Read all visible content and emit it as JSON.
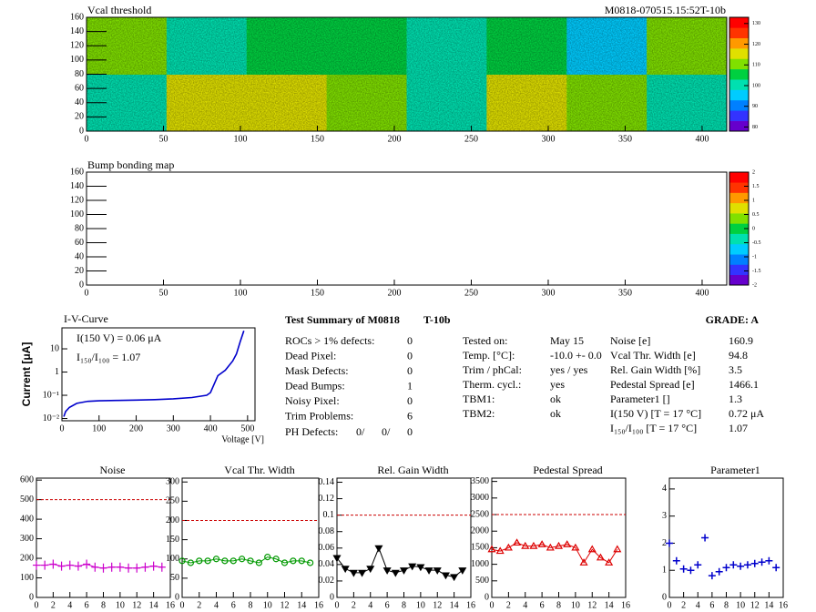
{
  "chart_data": [
    {
      "type": "heatmap",
      "title": "Vcal threshold",
      "subtitle": "M0818-070515.15:52T-10b",
      "xlim": [
        0,
        416
      ],
      "ylim": [
        0,
        160
      ],
      "xticks": [
        0,
        50,
        100,
        150,
        200,
        250,
        300,
        350,
        400
      ],
      "yticks": [
        0,
        20,
        40,
        60,
        80,
        100,
        120,
        140,
        160
      ],
      "values": [
        [
          100,
          115,
          114,
          110,
          100,
          114,
          110,
          100
        ],
        [
          110,
          100,
          103,
          106,
          100,
          105,
          95,
          108
        ]
      ],
      "zlim": [
        78,
        133
      ],
      "zticks": [
        80,
        90,
        100,
        110,
        120,
        130
      ],
      "colorscale": [
        "#6600cc",
        "#3333ff",
        "#0080ff",
        "#00ccff",
        "#00e0b0",
        "#00d040",
        "#80e000",
        "#e0e000",
        "#ff9900",
        "#ff3300",
        "#ff0000"
      ]
    },
    {
      "type": "heatmap",
      "title": "Bump bonding map",
      "xlim": [
        0,
        416
      ],
      "ylim": [
        0,
        160
      ],
      "xticks": [
        0,
        50,
        100,
        150,
        200,
        250,
        300,
        350,
        400
      ],
      "yticks": [
        0,
        20,
        40,
        60,
        80,
        100,
        120,
        140,
        160
      ],
      "values": [],
      "zlim": [
        -2,
        2
      ],
      "zticks": [
        -2,
        -1.5,
        -1,
        -0.5,
        0,
        0.5,
        1,
        1.5,
        2
      ],
      "colorscale": [
        "#6600cc",
        "#3333ff",
        "#0080ff",
        "#00ccff",
        "#00e0b0",
        "#00d040",
        "#80e000",
        "#e0e000",
        "#ff9900",
        "#ff3300",
        "#ff0000"
      ]
    },
    {
      "type": "line",
      "title": "I-V-Curve",
      "x_label": "Voltage [V]",
      "y_label": "Current [μA]",
      "log_y": true,
      "annotations": [
        "I(150 V) = 0.06 μA",
        "I₁₅₀/I₁₀₀ =  1.07"
      ],
      "xlim": [
        0,
        520
      ],
      "ylim": [
        0.008,
        80
      ],
      "xticks": [
        0,
        100,
        200,
        300,
        400,
        500
      ],
      "yticks": [
        {
          "value": 0.01,
          "label": "10⁻²"
        },
        {
          "value": 0.1,
          "label": "10⁻¹"
        },
        1,
        10
      ],
      "x": [
        5,
        10,
        20,
        40,
        70,
        100,
        150,
        200,
        250,
        300,
        350,
        390,
        400,
        410,
        420,
        440,
        460,
        470,
        480,
        490
      ],
      "values": [
        0.012,
        0.02,
        0.03,
        0.045,
        0.055,
        0.058,
        0.06,
        0.062,
        0.065,
        0.07,
        0.08,
        0.1,
        0.13,
        0.3,
        0.7,
        1.2,
        3,
        6,
        20,
        60
      ],
      "color": "#0000cc"
    },
    {
      "type": "line",
      "title": "Noise",
      "xlim": [
        0,
        16
      ],
      "ylim": [
        0,
        610
      ],
      "xticks": [
        0,
        2,
        4,
        6,
        8,
        10,
        12,
        14,
        16
      ],
      "yticks": [
        0,
        100,
        200,
        300,
        400,
        500,
        600
      ],
      "x": [
        0,
        1,
        2,
        3,
        4,
        5,
        6,
        7,
        8,
        9,
        10,
        11,
        12,
        13,
        14,
        15
      ],
      "values": [
        165,
        165,
        170,
        160,
        165,
        160,
        170,
        155,
        150,
        155,
        155,
        150,
        150,
        155,
        160,
        155
      ],
      "color": "#cc00cc",
      "marker": "plus",
      "connect": true,
      "limit": 500,
      "limit_color": "#cc0000"
    },
    {
      "type": "line",
      "title": "Vcal Thr. Width",
      "xlim": [
        0,
        16
      ],
      "ylim": [
        0,
        310
      ],
      "xticks": [
        0,
        2,
        4,
        6,
        8,
        10,
        12,
        14,
        16
      ],
      "yticks": [
        0,
        50,
        100,
        150,
        200,
        250,
        300
      ],
      "x": [
        0,
        1,
        2,
        3,
        4,
        5,
        6,
        7,
        8,
        9,
        10,
        11,
        12,
        13,
        14,
        15
      ],
      "values": [
        95,
        90,
        95,
        95,
        100,
        95,
        95,
        100,
        95,
        90,
        105,
        100,
        90,
        95,
        95,
        90
      ],
      "color": "#009900",
      "marker": "circle",
      "connect": true,
      "limit": 200,
      "limit_color": "#cc0000"
    },
    {
      "type": "line",
      "title": "Rel. Gain Width",
      "xlim": [
        0,
        16
      ],
      "ylim": [
        0,
        0.145
      ],
      "xticks": [
        0,
        2,
        4,
        6,
        8,
        10,
        12,
        14,
        16
      ],
      "yticks": [
        0,
        0.02,
        0.04,
        0.06,
        0.08,
        0.1,
        0.12,
        0.14
      ],
      "x": [
        0,
        1,
        2,
        3,
        4,
        5,
        6,
        7,
        8,
        9,
        10,
        11,
        12,
        13,
        14,
        15
      ],
      "values": [
        0.048,
        0.035,
        0.03,
        0.03,
        0.035,
        0.06,
        0.033,
        0.03,
        0.033,
        0.038,
        0.037,
        0.033,
        0.033,
        0.027,
        0.025,
        0.033
      ],
      "color": "#000000",
      "marker": "triangle-down",
      "connect": true,
      "limit": 0.1,
      "limit_color": "#cc0000"
    },
    {
      "type": "line",
      "title": "Pedestal Spread",
      "xlim": [
        0,
        16
      ],
      "ylim": [
        0,
        3600
      ],
      "xticks": [
        0,
        2,
        4,
        6,
        8,
        10,
        12,
        14,
        16
      ],
      "yticks": [
        0,
        500,
        1000,
        1500,
        2000,
        2500,
        3000,
        3500
      ],
      "x": [
        0,
        1,
        2,
        3,
        4,
        5,
        6,
        7,
        8,
        9,
        10,
        11,
        12,
        13,
        14,
        15
      ],
      "values": [
        1450,
        1400,
        1500,
        1650,
        1550,
        1550,
        1600,
        1500,
        1550,
        1600,
        1500,
        1050,
        1450,
        1200,
        1050,
        1450
      ],
      "color": "#dd0000",
      "marker": "triangle",
      "connect": true,
      "limit": 2500,
      "limit_color": "#cc0000"
    },
    {
      "type": "line",
      "title": "Parameter1",
      "xlim": [
        0,
        16
      ],
      "ylim": [
        0,
        4.4
      ],
      "xticks": [
        0,
        2,
        4,
        6,
        8,
        10,
        12,
        14,
        16
      ],
      "yticks": [
        0,
        1,
        2,
        3,
        4
      ],
      "x": [
        0,
        1,
        2,
        3,
        4,
        5,
        6,
        7,
        8,
        9,
        10,
        11,
        12,
        13,
        14,
        15
      ],
      "values": [
        2.0,
        1.35,
        1.05,
        1.0,
        1.2,
        2.2,
        0.8,
        0.95,
        1.1,
        1.2,
        1.15,
        1.2,
        1.25,
        1.3,
        1.35,
        1.1
      ],
      "color": "#0000cc",
      "marker": "cross",
      "connect": false
    }
  ],
  "summary": {
    "title": "Test Summary of M0818",
    "module": "T-10b",
    "grade": "GRADE:  A",
    "defects": [
      [
        "ROCs > 1% defects:",
        "0"
      ],
      [
        "Dead Pixel:",
        "0"
      ],
      [
        "Mask Defects:",
        "0"
      ],
      [
        "Dead Bumps:",
        "1"
      ],
      [
        "Noisy Pixel:",
        "0"
      ],
      [
        "Trim Problems:",
        "6"
      ]
    ],
    "ph_defects": {
      "label": "PH Defects:",
      "values": [
        "0/",
        "0/",
        "0"
      ],
      "colors": [
        "#000000",
        "#ff0000",
        "#0000ff"
      ]
    },
    "conditions": [
      [
        "Tested on:",
        "May 15"
      ],
      [
        "Temp. [°C]:",
        "-10.0 +- 0.0"
      ],
      [
        "Trim / phCal:",
        "yes / yes"
      ],
      [
        "Therm. cycl.:",
        "yes"
      ],
      [
        "TBM1:",
        "ok"
      ],
      [
        "TBM2:",
        "ok"
      ]
    ],
    "results": [
      [
        "Noise [e]",
        "160.9"
      ],
      [
        "Vcal Thr. Width [e]",
        "94.8"
      ],
      [
        "Rel. Gain Width [%]",
        "3.5"
      ],
      [
        "Pedestal Spread [e]",
        "1466.1"
      ],
      [
        "Parameter1 []",
        "1.3"
      ],
      [
        "I(150 V) [T = 17 °C]",
        "0.72 μA"
      ],
      [
        "I₁₅₀/I₁₀₀  [T = 17 °C]",
        "1.07"
      ]
    ]
  }
}
